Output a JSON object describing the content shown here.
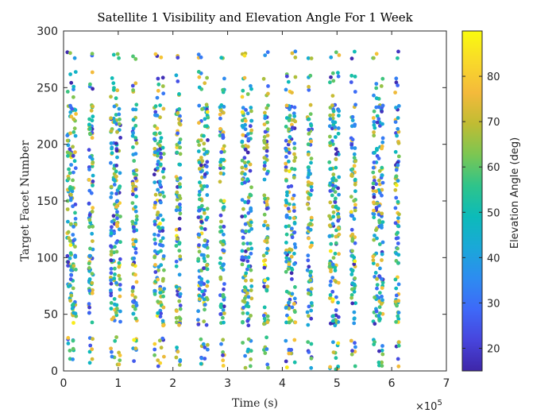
{
  "chart_data": {
    "type": "scatter",
    "title": "Satellite 1 Visibility and Elevation Angle For 1 Week",
    "xlabel": "Time (s)",
    "ylabel": "Target Facet Number",
    "x_exponent_label": "×10",
    "x_exponent_power": "5",
    "xlim": [
      0,
      7
    ],
    "ylim": [
      0,
      300
    ],
    "x_ticks": [
      "0",
      "1",
      "2",
      "3",
      "4",
      "5",
      "6",
      "7"
    ],
    "y_ticks": [
      "0",
      "50",
      "100",
      "150",
      "200",
      "250",
      "300"
    ],
    "colorbar": {
      "label": "Elevation Angle (deg)",
      "range": [
        15,
        90
      ],
      "ticks": [
        "20",
        "30",
        "40",
        "50",
        "60",
        "70",
        "80"
      ],
      "colormap": [
        "#3e26a8",
        "#4745dd",
        "#3e69f8",
        "#2d8cf0",
        "#1aa8d8",
        "#0cbbb9",
        "#2fc48a",
        "#7cc652",
        "#c0bc33",
        "#f4ba3b",
        "#f9d92a",
        "#f9fb0e"
      ]
    },
    "passes": [
      {
        "center": 0.15,
        "width": 0.18
      },
      {
        "center": 0.5,
        "width": 0.1
      },
      {
        "center": 0.95,
        "width": 0.2
      },
      {
        "center": 1.3,
        "width": 0.1
      },
      {
        "center": 1.75,
        "width": 0.2
      },
      {
        "center": 2.1,
        "width": 0.1
      },
      {
        "center": 2.55,
        "width": 0.2
      },
      {
        "center": 2.9,
        "width": 0.1
      },
      {
        "center": 3.35,
        "width": 0.2
      },
      {
        "center": 3.7,
        "width": 0.1
      },
      {
        "center": 4.15,
        "width": 0.2
      },
      {
        "center": 4.5,
        "width": 0.1
      },
      {
        "center": 4.95,
        "width": 0.2
      },
      {
        "center": 5.3,
        "width": 0.1
      },
      {
        "center": 5.75,
        "width": 0.2
      },
      {
        "center": 6.1,
        "width": 0.08
      }
    ],
    "facet_bands": [
      {
        "y_range": [
          0,
          30
        ],
        "density": 0.5
      },
      {
        "y_range": [
          40,
          100
        ],
        "density": 1.0
      },
      {
        "y_range": [
          100,
          160
        ],
        "density": 1.0
      },
      {
        "y_range": [
          160,
          235
        ],
        "density": 1.0
      },
      {
        "y_range": [
          240,
          265
        ],
        "density": 0.4
      },
      {
        "y_range": [
          275,
          282
        ],
        "density": 0.6
      }
    ]
  }
}
